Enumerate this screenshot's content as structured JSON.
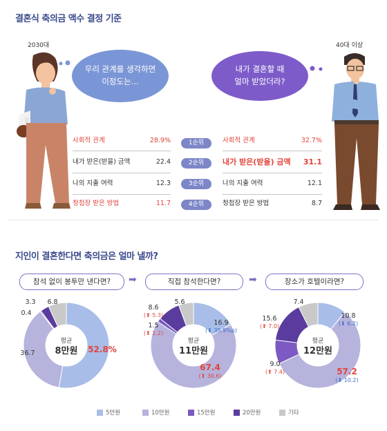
{
  "colors": {
    "c5": "#a8bde8",
    "c10": "#b6b3dd",
    "c15": "#7c5ac1",
    "c20": "#5a3c9e",
    "etc": "#c9c9c9",
    "accent": "#e2443a"
  },
  "section1": {
    "title": "결혼식 축의금 액수 결정 기준",
    "left_group": "2030대",
    "right_group": "40대 이상",
    "left_bubble": [
      "우리 관계를 생각하면",
      "이정도는..."
    ],
    "right_bubble": [
      "내가 결혼할 때",
      "얼마 받았더라?"
    ],
    "ranks": [
      "1순위",
      "2순위",
      "3순위",
      "4순위"
    ],
    "left_rows": [
      {
        "label": "사회적 관계",
        "value": "28.9%"
      },
      {
        "label": "내가 받은(받을) 금액",
        "value": "22.4"
      },
      {
        "label": "나의 지출 여력",
        "value": "12.3"
      },
      {
        "label": "청첩장 받은 방법",
        "value": "11.7"
      }
    ],
    "right_rows": [
      {
        "label": "사회적 관계",
        "value": "32.7%"
      },
      {
        "label": "내가 받은(받을) 금액",
        "value": "31.1"
      },
      {
        "label": "나의 지출 여력",
        "value": "12.1"
      },
      {
        "label": "청첩장 받은 방법",
        "value": "8.7"
      }
    ]
  },
  "section2": {
    "title": "지인이 결혼한다면 축의금은 얼마 낼까?",
    "avg_label": "평균",
    "legend": [
      "5만원",
      "10만원",
      "15만원",
      "20만원",
      "기타"
    ]
  },
  "chart_data": [
    {
      "type": "pie",
      "title": "참석 없이 봉투만 낸다면?",
      "average": "8만원",
      "categories": [
        "5만원",
        "10만원",
        "15만원",
        "20만원",
        "기타"
      ],
      "values": [
        52.8,
        36.7,
        0.4,
        3.3,
        6.8
      ],
      "value_labels": [
        "52.8%",
        "36.7",
        "0.4",
        "3.3",
        "6.8"
      ],
      "changes": [
        "",
        "",
        "",
        "",
        ""
      ]
    },
    {
      "type": "pie",
      "title": "직접 참석한다면?",
      "average": "11만원",
      "categories": [
        "5만원",
        "10만원",
        "15만원",
        "20만원",
        "기타"
      ],
      "values": [
        16.9,
        67.4,
        1.5,
        8.6,
        5.6
      ],
      "value_labels": [
        "16.9",
        "67.4",
        "1.5",
        "8.6",
        "5.6"
      ],
      "changes": [
        "⬇ 35.9%p",
        "⬆ 30.6",
        "⬆ 1.2",
        "⬆ 5.3",
        ""
      ]
    },
    {
      "type": "pie",
      "title": "장소가 호텔이라면?",
      "average": "12만원",
      "categories": [
        "5만원",
        "10만원",
        "15만원",
        "20만원",
        "기타"
      ],
      "values": [
        10.8,
        57.2,
        9.0,
        15.6,
        7.4
      ],
      "value_labels": [
        "10.8",
        "57.2",
        "9.0",
        "15.6",
        "7.4"
      ],
      "changes": [
        "⬇ 6.2",
        "⬇ 10.2",
        "⬆ 7.4",
        "⬆ 7.0",
        ""
      ]
    }
  ]
}
